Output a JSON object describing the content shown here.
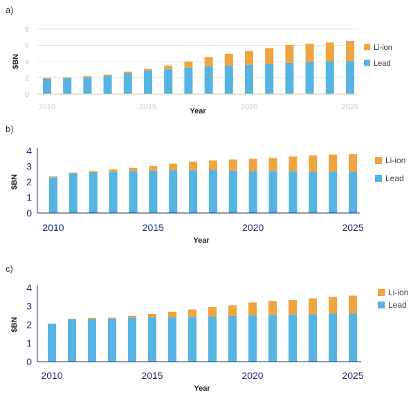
{
  "colors": {
    "lead": "#56b4e3",
    "liion": "#f0a440",
    "axis_a": "#d5c9a6",
    "axis_bc": "#1f2b6b",
    "text_a": "#d5c9a6",
    "text_bc": "#1f2b6b"
  },
  "chart_data": [
    {
      "panel_label": "a)",
      "type": "bar",
      "stacked": true,
      "x": [
        2010,
        2011,
        2012,
        2013,
        2014,
        2015,
        2016,
        2017,
        2018,
        2019,
        2020,
        2021,
        2022,
        2023,
        2024,
        2025
      ],
      "x_tick_labels": [
        "2010",
        "2015",
        "2020",
        "2025"
      ],
      "y_tick_labels": [
        "0",
        "2",
        "4",
        "6",
        "8"
      ],
      "ylim": [
        0,
        8
      ],
      "xlabel": "Year",
      "ylabel": "$BN",
      "grid": true,
      "legend_position": "right",
      "series": [
        {
          "name": "Lead",
          "values": [
            1.9,
            1.95,
            2.05,
            2.25,
            2.55,
            2.85,
            3.05,
            3.25,
            3.4,
            3.5,
            3.6,
            3.7,
            3.85,
            3.95,
            4.0,
            4.05
          ]
        },
        {
          "name": "Li-ion",
          "values": [
            0.1,
            0.1,
            0.15,
            0.15,
            0.2,
            0.25,
            0.45,
            0.75,
            1.15,
            1.45,
            1.7,
            1.95,
            2.2,
            2.25,
            2.35,
            2.5
          ]
        }
      ]
    },
    {
      "panel_label": "b)",
      "type": "bar",
      "stacked": true,
      "x": [
        2010,
        2011,
        2012,
        2013,
        2014,
        2015,
        2016,
        2017,
        2018,
        2019,
        2020,
        2021,
        2022,
        2023,
        2024,
        2025
      ],
      "x_tick_labels": [
        "2010",
        "2015",
        "2020",
        "2025"
      ],
      "y_tick_labels": [
        "0",
        "1",
        "2",
        "3",
        "4"
      ],
      "ylim": [
        0,
        4
      ],
      "xlabel": "Year",
      "ylabel": "$BN",
      "grid": false,
      "legend_position": "right",
      "series": [
        {
          "name": "Lead",
          "values": [
            2.3,
            2.55,
            2.6,
            2.65,
            2.7,
            2.72,
            2.75,
            2.75,
            2.75,
            2.72,
            2.7,
            2.7,
            2.68,
            2.65,
            2.65,
            2.62
          ]
        },
        {
          "name": "Li-ion",
          "values": [
            0.05,
            0.05,
            0.1,
            0.15,
            0.2,
            0.3,
            0.42,
            0.55,
            0.62,
            0.72,
            0.78,
            0.83,
            0.95,
            1.05,
            1.1,
            1.16
          ]
        }
      ]
    },
    {
      "panel_label": "c)",
      "type": "bar",
      "stacked": true,
      "x": [
        2010,
        2011,
        2012,
        2013,
        2014,
        2015,
        2016,
        2017,
        2018,
        2019,
        2020,
        2021,
        2022,
        2023,
        2024,
        2025
      ],
      "x_tick_labels": [
        "2010",
        "2015",
        "2020",
        "2025"
      ],
      "y_tick_labels": [
        "0",
        "1",
        "2",
        "3",
        "4"
      ],
      "ylim": [
        0,
        4
      ],
      "xlabel": "Year",
      "ylabel": "$BN",
      "grid": false,
      "legend_position": "right",
      "series": [
        {
          "name": "Lead",
          "values": [
            2.05,
            2.28,
            2.3,
            2.32,
            2.38,
            2.4,
            2.4,
            2.42,
            2.45,
            2.47,
            2.5,
            2.52,
            2.55,
            2.57,
            2.6,
            2.6
          ]
        },
        {
          "name": "Li-ion",
          "values": [
            0.0,
            0.04,
            0.06,
            0.06,
            0.1,
            0.18,
            0.3,
            0.4,
            0.5,
            0.58,
            0.7,
            0.76,
            0.78,
            0.85,
            0.9,
            0.97
          ]
        }
      ]
    }
  ]
}
